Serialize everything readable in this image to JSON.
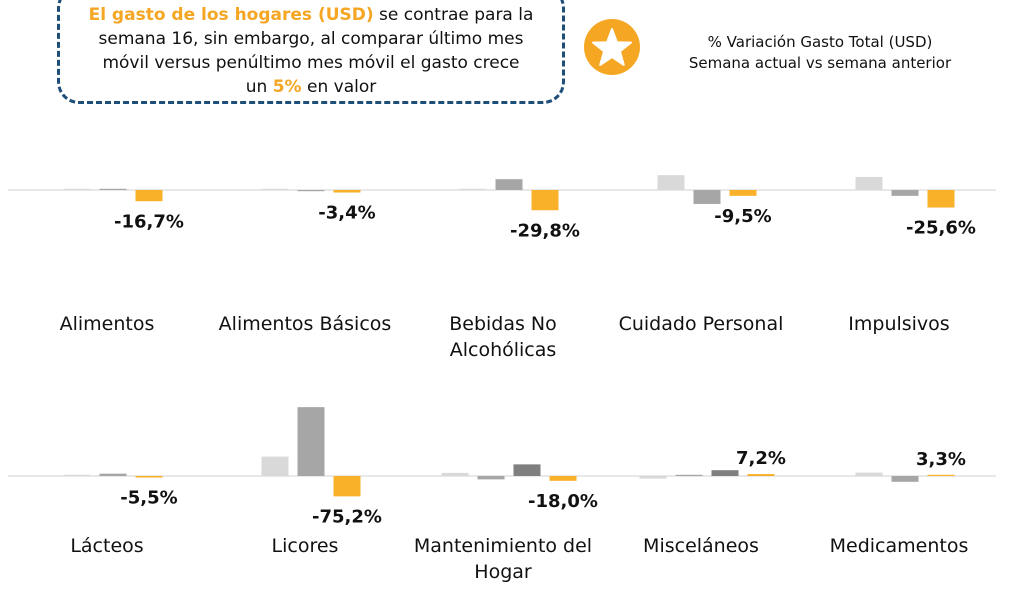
{
  "header": {
    "callout_line1_highlight": "El gasto de los hogares (USD)",
    "callout_line1_rest": " se contrae para la",
    "callout_line2": "semana 16, sin embargo, al comparar último mes",
    "callout_line3": "móvil versus penúltimo mes móvil el gasto crece",
    "callout_line4_pre": "un ",
    "callout_line4_highlight": "5%",
    "callout_line4_post": " en valor",
    "legend_line1": "% Variación Gasto Total (USD)",
    "legend_line2": "Semana actual vs semana anterior",
    "icon": "star-icon"
  },
  "colors": {
    "bar_light": "#d9d9d9",
    "bar_mid": "#a6a6a6",
    "bar_dark": "#7f7f7f",
    "bar_orange": "#f9b12a",
    "accent": "#f5a623",
    "callout_border": "#1f4e79"
  },
  "chart_data": {
    "type": "bar",
    "panels": [
      {
        "categories": [
          {
            "name": [
              "Alimentos"
            ],
            "values": [
              0.3,
              0.2,
              -12.5
            ],
            "label": "-16,7%"
          },
          {
            "name": [
              "Alimentos Básicos"
            ],
            "values": [
              0,
              -0.3,
              -2.8
            ],
            "label": "-3,4%"
          },
          {
            "name": [
              "Bebidas No",
              "Alcohólicas"
            ],
            "values": [
              0,
              12,
              -22.5
            ],
            "label": "-29,8%"
          },
          {
            "name": [
              "Cuidado Personal"
            ],
            "values": [
              16.5,
              -15.5,
              -6.5
            ],
            "label": "-9,5%"
          },
          {
            "name": [
              "Impulsivos"
            ],
            "values": [
              14.5,
              -6.5,
              -19.5
            ],
            "label": "-25,6%"
          }
        ]
      },
      {
        "categories": [
          {
            "name": [
              "Lácteos"
            ],
            "values": [
              0,
              2.4,
              -1.6
            ],
            "label": "-5,5%"
          },
          {
            "name": [
              "Licores"
            ],
            "values": [
              20,
              71,
              -21
            ],
            "label": "-75,2%"
          },
          {
            "name": [
              "Mantenimiento del",
              "Hogar"
            ],
            "values": [
              3.2,
              -3.5,
              12,
              -5
            ],
            "label": "-18,0%"
          },
          {
            "name": [
              "Misceláneos"
            ],
            "values": [
              -2.7,
              1.2,
              6,
              2
            ],
            "label": "7,2%"
          },
          {
            "name": [
              "Medicamentos"
            ],
            "values": [
              3.5,
              -6,
              0.8
            ],
            "label": "3,3%"
          }
        ]
      }
    ]
  }
}
